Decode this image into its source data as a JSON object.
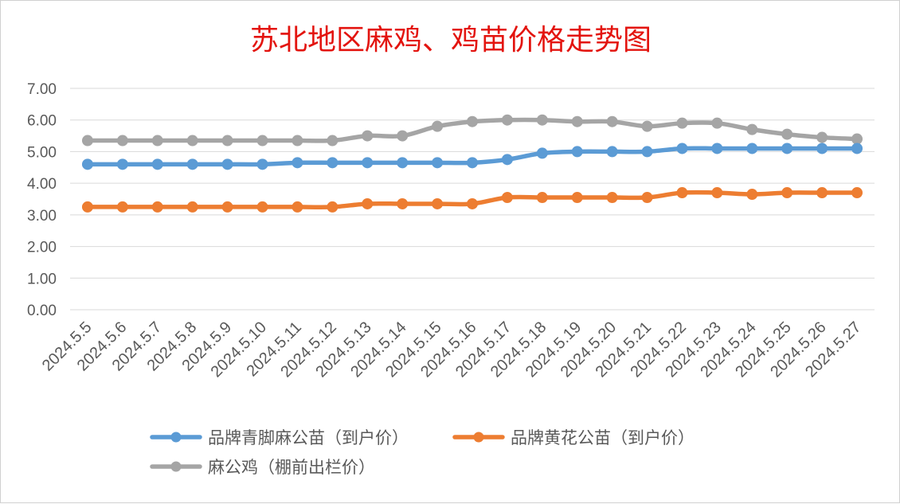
{
  "chart_data": {
    "type": "line",
    "title": "苏北地区麻鸡、鸡苗价格走势图",
    "xlabel": "",
    "ylabel": "",
    "ylim": [
      0,
      7
    ],
    "y_ticks": [
      "0.00",
      "1.00",
      "2.00",
      "3.00",
      "4.00",
      "5.00",
      "6.00",
      "7.00"
    ],
    "grid": true,
    "legend_position": "bottom",
    "smooth": true,
    "categories": [
      "2024.5.5",
      "2024.5.6",
      "2024.5.7",
      "2024.5.8",
      "2024.5.9",
      "2024.5.10",
      "2024.5.11",
      "2024.5.12",
      "2024.5.13",
      "2024.5.14",
      "2024.5.15",
      "2024.5.16",
      "2024.5.17",
      "2024.5.18",
      "2024.5.19",
      "2024.5.20",
      "2024.5.21",
      "2024.5.22",
      "2024.5.23",
      "2024.5.24",
      "2024.5.25",
      "2024.5.26",
      "2024.5.27"
    ],
    "series": [
      {
        "name": "品牌青脚麻公苗（到户价）",
        "color": "#5b9bd5",
        "values": [
          4.6,
          4.6,
          4.6,
          4.6,
          4.6,
          4.6,
          4.65,
          4.65,
          4.65,
          4.65,
          4.65,
          4.65,
          4.75,
          4.95,
          5.0,
          5.0,
          5.0,
          5.1,
          5.1,
          5.1,
          5.1,
          5.1,
          5.1
        ]
      },
      {
        "name": "品牌黄花公苗（到户价）",
        "color": "#ed7d31",
        "values": [
          3.25,
          3.25,
          3.25,
          3.25,
          3.25,
          3.25,
          3.25,
          3.25,
          3.35,
          3.35,
          3.35,
          3.35,
          3.55,
          3.55,
          3.55,
          3.55,
          3.55,
          3.7,
          3.7,
          3.65,
          3.7,
          3.7,
          3.7
        ]
      },
      {
        "name": "麻公鸡（棚前出栏价）",
        "color": "#a5a5a5",
        "values": [
          5.35,
          5.35,
          5.35,
          5.35,
          5.35,
          5.35,
          5.35,
          5.35,
          5.5,
          5.5,
          5.8,
          5.95,
          6.0,
          6.0,
          5.95,
          5.95,
          5.8,
          5.9,
          5.9,
          5.7,
          5.55,
          5.45,
          5.4
        ]
      }
    ]
  },
  "colors": {
    "title": "#e3140f",
    "grid": "#d9d9d9",
    "text": "#595959"
  }
}
